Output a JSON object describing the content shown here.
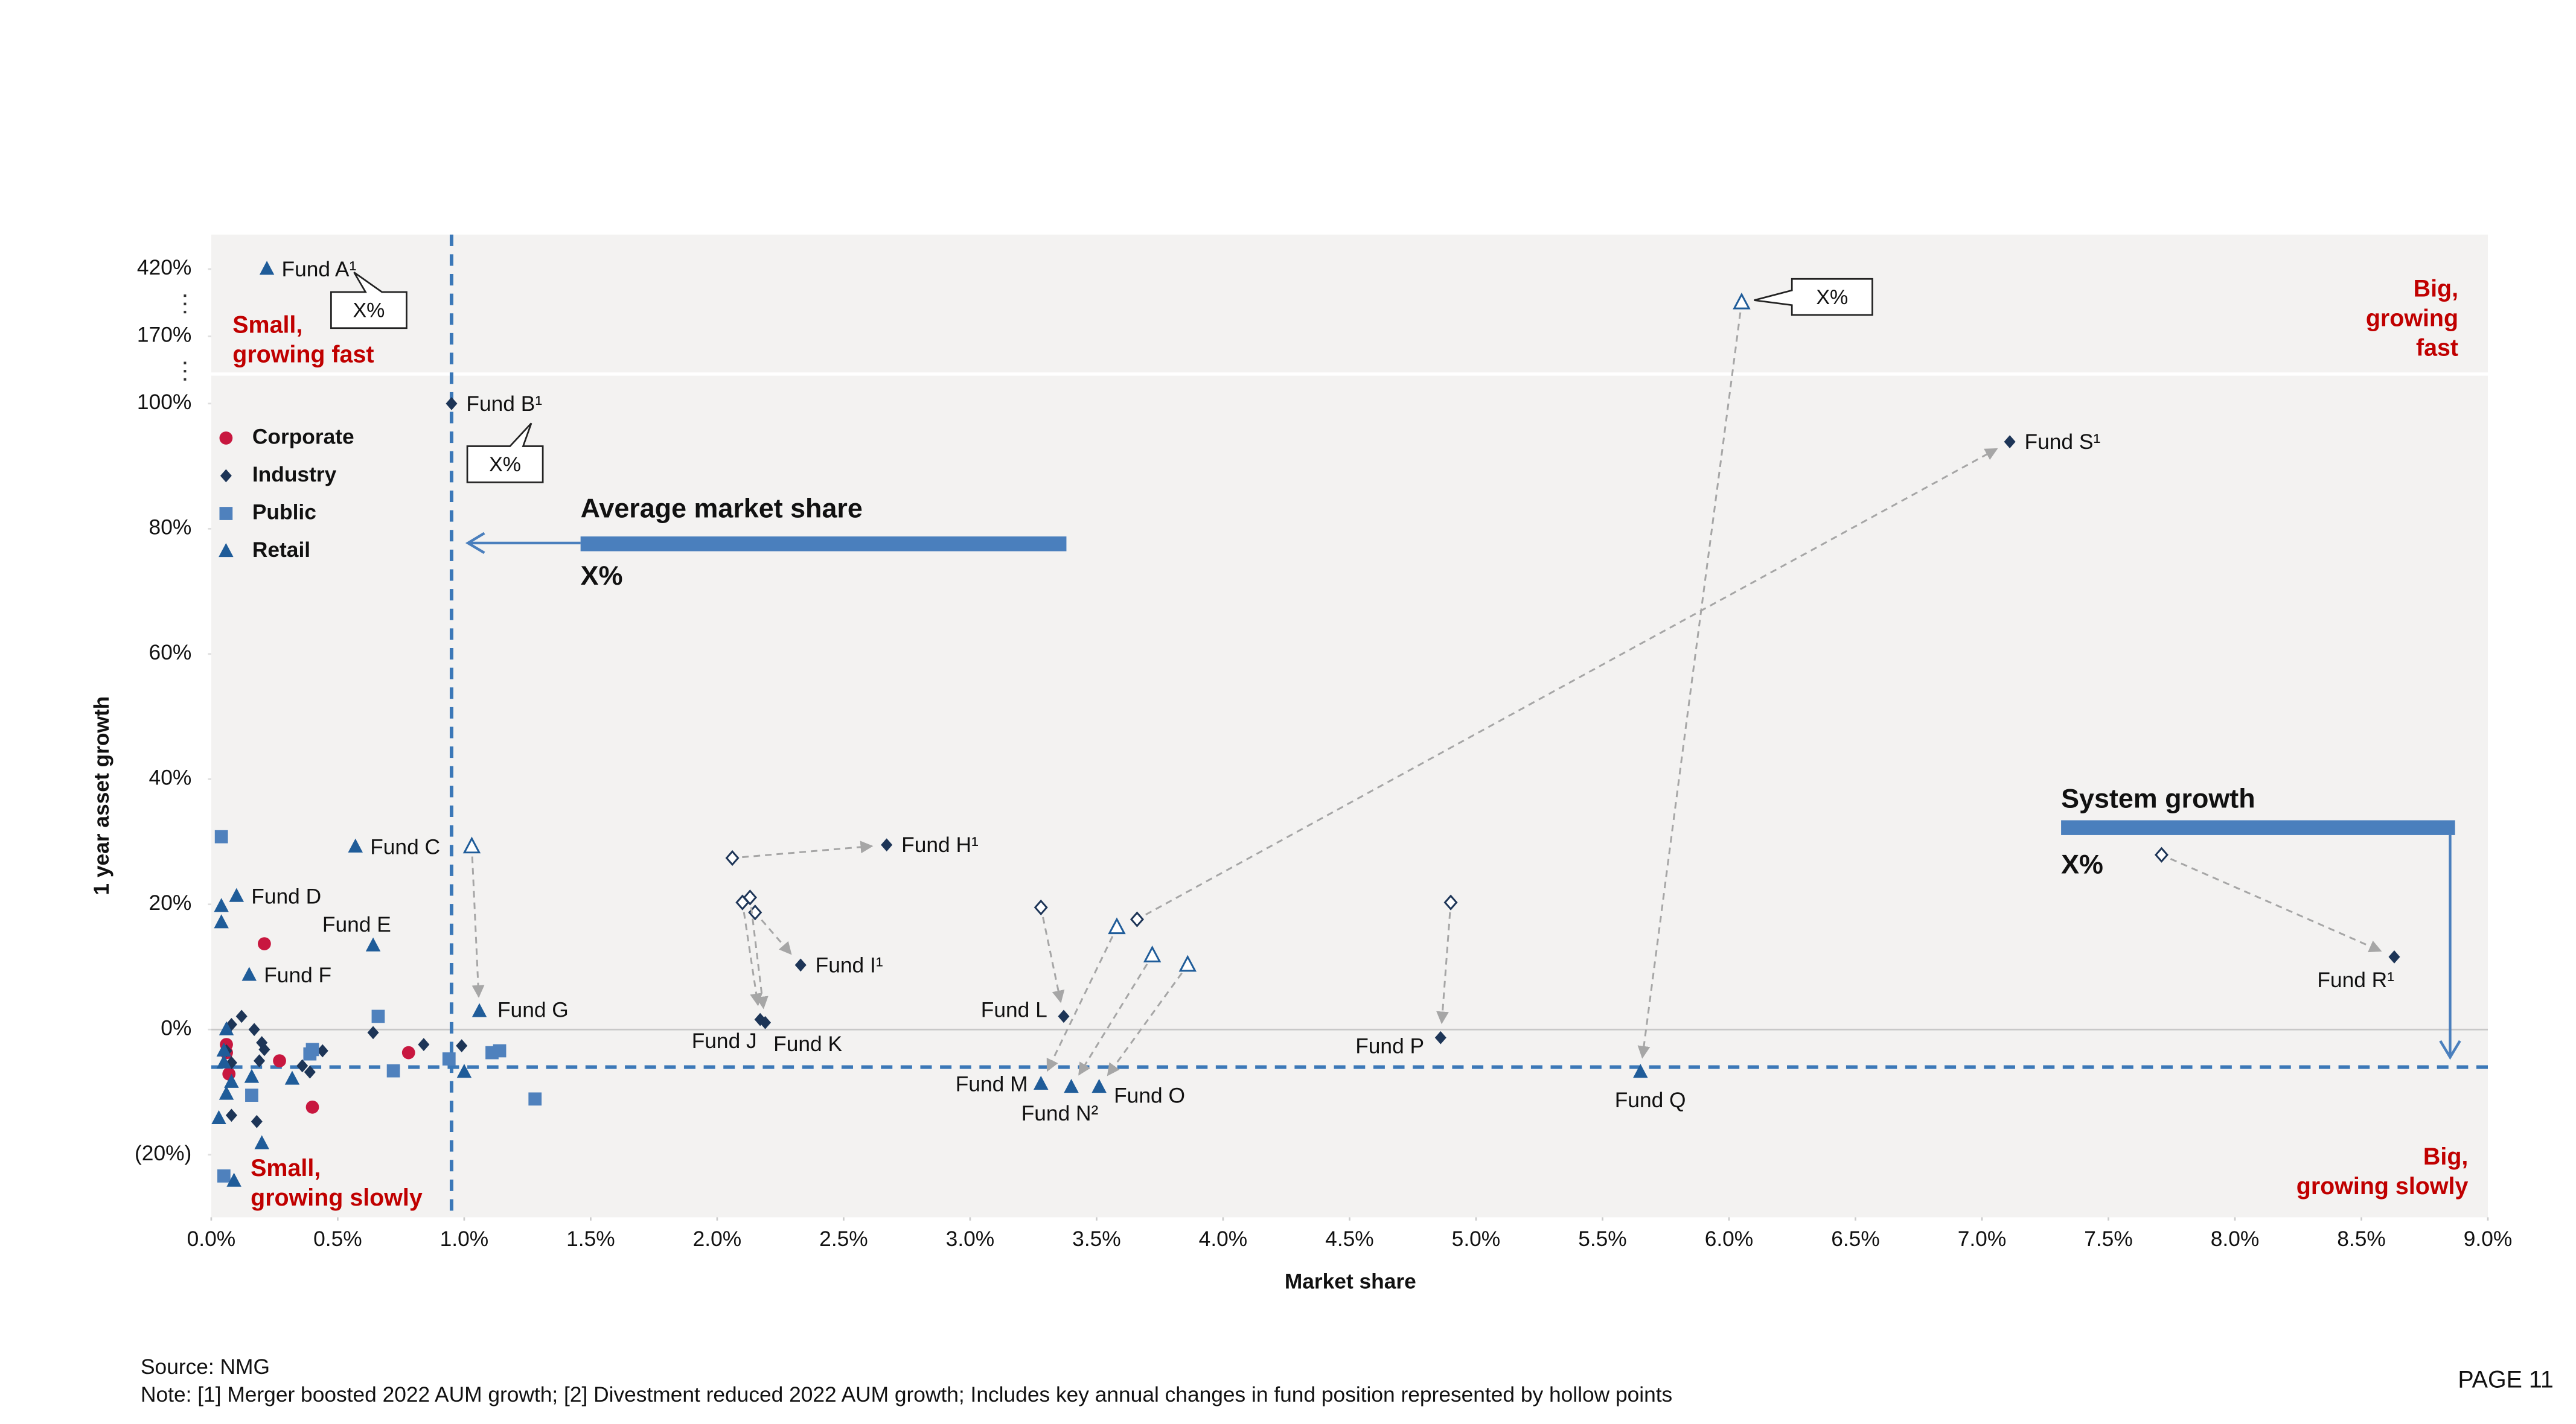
{
  "chart_data": {
    "type": "scatter",
    "x_label": "Market share",
    "y_label": "1 year asset growth",
    "xlim": [
      0,
      9
    ],
    "ylim": [
      -30,
      420
    ],
    "xticks": [
      {
        "value": 0,
        "label": "0.0%"
      },
      {
        "value": 0.5,
        "label": "0.5%"
      },
      {
        "value": 1,
        "label": "1.0%"
      },
      {
        "value": 1.5,
        "label": "1.5%"
      },
      {
        "value": 2,
        "label": "2.0%"
      },
      {
        "value": 2.5,
        "label": "2.5%"
      },
      {
        "value": 3,
        "label": "3.0%"
      },
      {
        "value": 3.5,
        "label": "3.5%"
      },
      {
        "value": 4,
        "label": "4.0%"
      },
      {
        "value": 4.5,
        "label": "4.5%"
      },
      {
        "value": 5,
        "label": "5.0%"
      },
      {
        "value": 5.5,
        "label": "5.5%"
      },
      {
        "value": 6,
        "label": "6.0%"
      },
      {
        "value": 6.5,
        "label": "6.5%"
      },
      {
        "value": 7,
        "label": "7.0%"
      },
      {
        "value": 7.5,
        "label": "7.5%"
      },
      {
        "value": 8,
        "label": "8.0%"
      },
      {
        "value": 8.5,
        "label": "8.5%"
      },
      {
        "value": 9,
        "label": "9.0%"
      }
    ],
    "yticks": [
      {
        "value": -20,
        "label": "(20%)"
      },
      {
        "value": 0,
        "label": "0%"
      },
      {
        "value": 20,
        "label": "20%"
      },
      {
        "value": 40,
        "label": "40%"
      },
      {
        "value": 60,
        "label": "60%"
      },
      {
        "value": 80,
        "label": "80%"
      },
      {
        "value": 100,
        "label": "100%"
      },
      {
        "value": 170,
        "label": "170%"
      },
      {
        "value": 420,
        "label": "420%"
      }
    ],
    "axis_break": true,
    "zero_line": true,
    "legend": "top-left",
    "reference_lines": {
      "x": 0.95,
      "y": -6.0
    },
    "series": [
      {
        "name": "Corporate",
        "color": "#c8173f",
        "marker": "circle",
        "x": [
          0.21,
          0.06,
          0.06,
          0.07,
          0.27,
          0.78,
          0.4
        ],
        "values": [
          13.7,
          -2.4,
          -3.7,
          -7.1,
          -5.0,
          -3.7,
          -12.4
        ],
        "labels": [
          null,
          null,
          null,
          null,
          null,
          null,
          null
        ],
        "prior_x": [
          null,
          null,
          null,
          null,
          null,
          null,
          null
        ],
        "prior_values": [
          null,
          null,
          null,
          null,
          null,
          null,
          null
        ]
      },
      {
        "name": "Industry",
        "color": "#1d3557",
        "marker": "diamond",
        "x": [
          0.95,
          2.67,
          2.33,
          2.17,
          2.19,
          3.37,
          4.86,
          8.63,
          7.11,
          0.08,
          0.12,
          0.17,
          0.2,
          0.21,
          0.19,
          0.08,
          0.36,
          0.39,
          0.44,
          0.64,
          0.84,
          0.99,
          0.08,
          0.18,
          0.06
        ],
        "values": [
          100,
          29.5,
          10.3,
          1.6,
          1.1,
          2.1,
          -1.3,
          11.6,
          93.9,
          0.8,
          2.1,
          0,
          -2.1,
          -3.2,
          -5.0,
          -5.3,
          -5.8,
          -6.8,
          -3.4,
          -0.5,
          -2.4,
          -2.6,
          -13.7,
          -14.7,
          -3.4
        ],
        "labels": [
          "Fund B¹",
          "Fund H¹",
          "Fund I¹",
          "Fund J",
          "Fund K",
          "Fund L",
          "Fund P",
          "Fund R¹",
          "Fund S¹",
          null,
          null,
          null,
          null,
          null,
          null,
          null,
          null,
          null,
          null,
          null,
          null,
          null,
          null,
          null,
          null
        ],
        "prior_x": [
          null,
          2.06,
          2.15,
          2.1,
          2.13,
          3.28,
          4.9,
          7.71,
          3.66,
          null,
          null,
          null,
          null,
          null,
          null,
          null,
          null,
          null,
          null,
          null,
          null,
          null,
          null,
          null,
          null
        ],
        "prior_values": [
          null,
          27.4,
          18.7,
          20.3,
          21.1,
          19.5,
          20.3,
          27.9,
          17.6,
          null,
          null,
          null,
          null,
          null,
          null,
          null,
          null,
          null,
          null,
          null,
          null,
          null,
          null,
          null,
          null
        ]
      },
      {
        "name": "Public",
        "color": "#4f81bd",
        "marker": "square",
        "x": [
          0.04,
          0.66,
          0.4,
          0.39,
          0.72,
          0.16,
          0.94,
          1.11,
          1.14,
          1.28,
          0.05
        ],
        "values": [
          30.8,
          2.1,
          -3.2,
          -3.9,
          -6.6,
          -10.5,
          -4.7,
          -3.7,
          -3.4,
          -11.1,
          -23.4
        ],
        "labels": [
          null,
          null,
          null,
          null,
          null,
          null,
          null,
          null,
          null,
          null,
          null
        ],
        "prior_x": [
          null,
          null,
          null,
          null,
          null,
          null,
          null,
          null,
          null,
          null,
          null
        ],
        "prior_values": [
          null,
          null,
          null,
          null,
          null,
          null,
          null,
          null,
          null,
          null,
          null
        ]
      },
      {
        "name": "Retail",
        "color": "#1f5c99",
        "marker": "triangle",
        "x": [
          0.22,
          0.57,
          0.1,
          0.64,
          0.15,
          1.06,
          3.28,
          3.4,
          3.51,
          5.65,
          0.04,
          0.04,
          0.06,
          0.05,
          0.05,
          0.08,
          0.06,
          0.03,
          0.16,
          0.32,
          0.2,
          0.09,
          1.0
        ],
        "values": [
          420,
          29.2,
          21.3,
          13.4,
          8.7,
          2.9,
          -8.7,
          -9.2,
          -9.2,
          -6.8,
          19.7,
          17.1,
          0,
          -3.4,
          -5.3,
          -8.4,
          -10.3,
          -14.2,
          -7.6,
          -7.9,
          -18.2,
          -24.2,
          -6.8
        ],
        "labels": [
          "Fund A¹",
          "Fund C",
          "Fund D",
          "Fund E",
          "Fund F",
          "Fund G",
          "Fund M",
          "Fund N²",
          "Fund O",
          "Fund Q",
          null,
          null,
          null,
          null,
          null,
          null,
          null,
          null,
          null,
          null,
          null,
          null,
          null
        ],
        "prior_x": [
          null,
          null,
          null,
          null,
          null,
          1.03,
          3.58,
          3.72,
          3.86,
          6.05,
          null,
          null,
          null,
          null,
          null,
          null,
          null,
          null,
          null,
          null,
          null,
          null,
          null
        ],
        "prior_values": [
          null,
          null,
          null,
          null,
          null,
          29.2,
          16.3,
          11.8,
          10.3,
          295,
          null,
          null,
          null,
          null,
          null,
          null,
          null,
          null,
          null,
          null,
          null,
          null,
          null
        ]
      }
    ],
    "annotations": {
      "quadrants": {
        "top_left": [
          "Small,",
          "growing fast"
        ],
        "top_right": [
          "Big,",
          "growing",
          "fast"
        ],
        "bottom_left": [
          "Small,",
          "growing slowly"
        ],
        "bottom_right": [
          "Big,",
          "growing slowly"
        ]
      },
      "average_market_share": {
        "title": "Average market share",
        "value_text": "X%"
      },
      "system_growth": {
        "title": "System growth",
        "value_text": "X%"
      },
      "callouts": [
        "X%",
        "X%",
        "X%"
      ]
    }
  },
  "footer": {
    "source": "Source: NMG",
    "note": "Note: [1] Merger boosted 2022 AUM growth; [2] Divestment reduced 2022 AUM growth; Includes key annual changes in fund position represented by hollow points",
    "page": "PAGE 11"
  }
}
